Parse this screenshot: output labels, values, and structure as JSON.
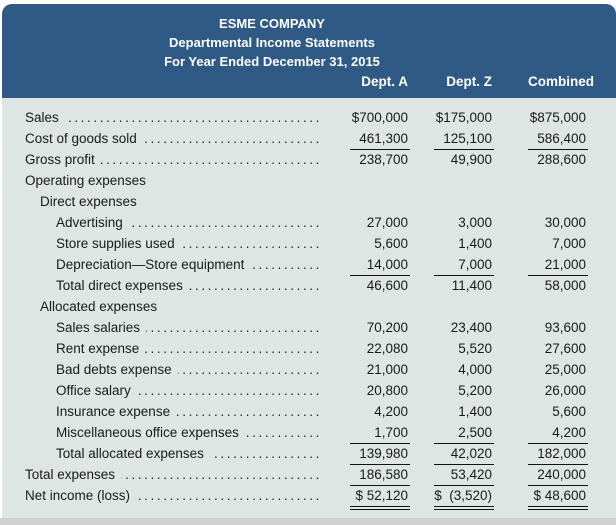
{
  "header": {
    "company": "ESME COMPANY",
    "statement": "Departmental Income Statements",
    "period": "For Year Ended December 31, 2015",
    "columns": [
      "Dept. A",
      "Dept. Z",
      "Combined"
    ]
  },
  "colors": {
    "header_bg": "#2f5a86",
    "body_bg": "#dde6e2"
  },
  "rows": [
    {
      "label": "Sales",
      "indent": 0,
      "dots": true,
      "values": [
        "$700,000",
        "$175,000",
        "$875,000"
      ]
    },
    {
      "label": "Cost of goods sold",
      "indent": 0,
      "dots": true,
      "values": [
        "461,300",
        "125,100",
        "586,400"
      ],
      "rule": "single"
    },
    {
      "label": "Gross profit",
      "indent": 0,
      "dots": true,
      "values": [
        "238,700",
        "49,900",
        "288,600"
      ]
    },
    {
      "label": "Operating expenses",
      "indent": 0,
      "dots": false,
      "values": []
    },
    {
      "label": "Direct expenses",
      "indent": 1,
      "dots": false,
      "values": []
    },
    {
      "label": "Advertising",
      "indent": 2,
      "dots": true,
      "values": [
        "27,000",
        "3,000",
        "30,000"
      ]
    },
    {
      "label": "Store supplies used",
      "indent": 2,
      "dots": true,
      "values": [
        "5,600",
        "1,400",
        "7,000"
      ]
    },
    {
      "label": "Depreciation—Store equipment",
      "indent": 2,
      "dots": true,
      "values": [
        "14,000",
        "7,000",
        "21,000"
      ],
      "rule": "single"
    },
    {
      "label": "Total direct expenses",
      "indent": 2,
      "dots": true,
      "values": [
        "46,600",
        "11,400",
        "58,000"
      ]
    },
    {
      "label": "Allocated expenses",
      "indent": 1,
      "dots": false,
      "values": []
    },
    {
      "label": "Sales salaries",
      "indent": 2,
      "dots": true,
      "values": [
        "70,200",
        "23,400",
        "93,600"
      ]
    },
    {
      "label": "Rent expense",
      "indent": 2,
      "dots": true,
      "values": [
        "22,080",
        "5,520",
        "27,600"
      ]
    },
    {
      "label": "Bad debts expense",
      "indent": 2,
      "dots": true,
      "values": [
        "21,000",
        "4,000",
        "25,000"
      ]
    },
    {
      "label": "Office salary",
      "indent": 2,
      "dots": true,
      "values": [
        "20,800",
        "5,200",
        "26,000"
      ]
    },
    {
      "label": "Insurance expense",
      "indent": 2,
      "dots": true,
      "values": [
        "4,200",
        "1,400",
        "5,600"
      ]
    },
    {
      "label": "Miscellaneous office expenses",
      "indent": 2,
      "dots": true,
      "values": [
        "1,700",
        "2,500",
        "4,200"
      ],
      "rule": "single"
    },
    {
      "label": "Total allocated expenses",
      "indent": 2,
      "dots": true,
      "values": [
        "139,980",
        "42,020",
        "182,000"
      ],
      "rule": "single"
    },
    {
      "label": "Total expenses",
      "indent": 0,
      "dots": true,
      "values": [
        "186,580",
        "53,420",
        "240,000"
      ],
      "rule": "single"
    },
    {
      "label": "Net income (loss)",
      "indent": 0,
      "dots": true,
      "values": [
        "$ 52,120",
        "$  (3,520)",
        "$ 48,600"
      ],
      "rule": "double"
    }
  ]
}
